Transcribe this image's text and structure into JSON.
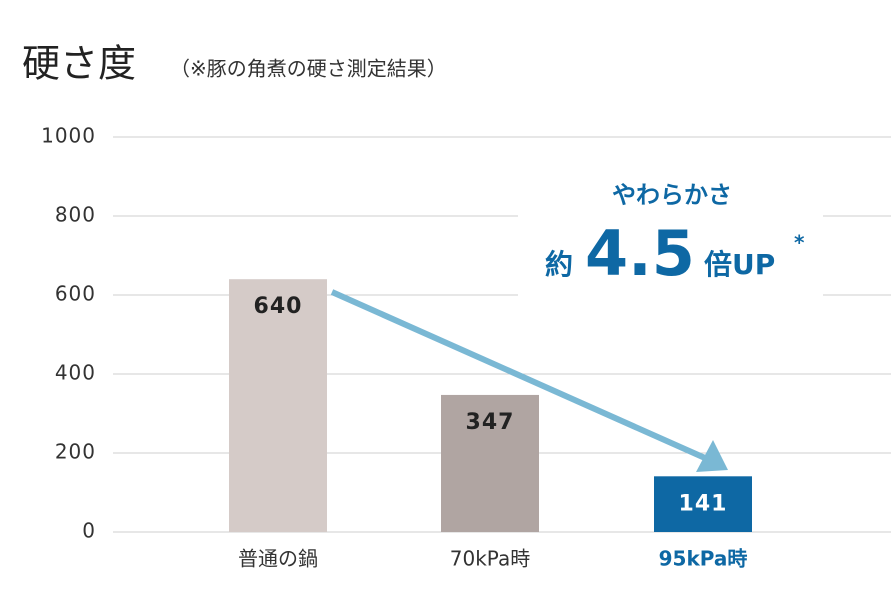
{
  "chart_data": {
    "type": "bar",
    "title": "硬さ度",
    "subtitle": "（※豚の角煮の硬さ測定結果）",
    "categories": [
      "普通の鍋",
      "70kPa時",
      "95kPa時"
    ],
    "values": [
      640,
      347,
      141
    ],
    "colors": [
      "#d5cbc8",
      "#b0a5a2",
      "#0e68a4"
    ],
    "highlight_index": 2,
    "ylim": [
      0,
      1000
    ],
    "yticks": [
      0,
      200,
      400,
      600,
      800,
      1000
    ],
    "grid": true,
    "annotation": {
      "line1": "やわらかさ",
      "prefix": "約",
      "number": "4.5",
      "suffix": "倍UP",
      "mark": "*"
    }
  }
}
